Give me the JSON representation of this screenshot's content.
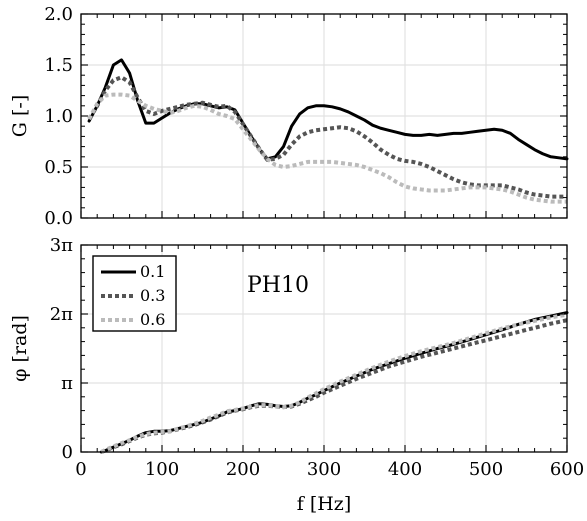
{
  "chart_data": [
    {
      "type": "line",
      "panel": "top",
      "ylabel": "G [-]",
      "ylabel_symbol": "G",
      "ylabel_unit": "[-]",
      "xlim": [
        0,
        600
      ],
      "ylim": [
        0.0,
        2.0
      ],
      "yticks": [
        0.0,
        0.5,
        1.0,
        1.5,
        2.0
      ],
      "ytick_labels": [
        "0.0",
        "0.5",
        "1.0",
        "1.5",
        "2.0"
      ],
      "grid": true,
      "series": [
        {
          "name": "0.1",
          "color": "#000000",
          "style": "solid",
          "x": [
            10,
            20,
            30,
            40,
            50,
            60,
            70,
            80,
            90,
            100,
            110,
            120,
            130,
            140,
            150,
            160,
            170,
            180,
            190,
            200,
            210,
            220,
            230,
            240,
            250,
            260,
            270,
            280,
            290,
            300,
            310,
            320,
            330,
            340,
            350,
            360,
            370,
            380,
            390,
            400,
            410,
            420,
            430,
            440,
            450,
            460,
            470,
            480,
            490,
            500,
            510,
            520,
            530,
            540,
            550,
            560,
            570,
            580,
            590,
            600
          ],
          "y": [
            0.95,
            1.1,
            1.28,
            1.5,
            1.55,
            1.42,
            1.15,
            0.93,
            0.93,
            0.98,
            1.03,
            1.07,
            1.1,
            1.12,
            1.12,
            1.1,
            1.08,
            1.09,
            1.06,
            0.93,
            0.8,
            0.68,
            0.58,
            0.6,
            0.7,
            0.9,
            1.02,
            1.08,
            1.1,
            1.1,
            1.09,
            1.07,
            1.04,
            1.0,
            0.96,
            0.91,
            0.88,
            0.86,
            0.84,
            0.82,
            0.81,
            0.81,
            0.82,
            0.81,
            0.82,
            0.83,
            0.83,
            0.84,
            0.85,
            0.86,
            0.87,
            0.86,
            0.83,
            0.77,
            0.72,
            0.67,
            0.63,
            0.6,
            0.59,
            0.58
          ]
        },
        {
          "name": "0.3",
          "color": "#555555",
          "style": "dotted",
          "x": [
            10,
            20,
            30,
            40,
            50,
            60,
            70,
            80,
            90,
            100,
            110,
            120,
            130,
            140,
            150,
            160,
            170,
            180,
            190,
            200,
            210,
            220,
            230,
            240,
            250,
            260,
            270,
            280,
            290,
            300,
            310,
            320,
            330,
            340,
            350,
            360,
            370,
            380,
            390,
            400,
            410,
            420,
            430,
            440,
            450,
            460,
            470,
            480,
            490,
            500,
            510,
            520,
            530,
            540,
            550,
            560,
            570,
            580,
            590,
            600
          ],
          "y": [
            0.97,
            1.1,
            1.25,
            1.35,
            1.38,
            1.33,
            1.18,
            1.05,
            1.02,
            1.05,
            1.07,
            1.09,
            1.11,
            1.12,
            1.13,
            1.11,
            1.09,
            1.1,
            1.04,
            0.92,
            0.8,
            0.68,
            0.57,
            0.58,
            0.62,
            0.72,
            0.8,
            0.84,
            0.86,
            0.87,
            0.88,
            0.89,
            0.88,
            0.85,
            0.8,
            0.74,
            0.67,
            0.62,
            0.58,
            0.56,
            0.55,
            0.53,
            0.5,
            0.46,
            0.42,
            0.38,
            0.35,
            0.33,
            0.32,
            0.32,
            0.32,
            0.32,
            0.3,
            0.28,
            0.25,
            0.23,
            0.22,
            0.21,
            0.21,
            0.21
          ]
        },
        {
          "name": "0.6",
          "color": "#bbbbbb",
          "style": "dotted",
          "x": [
            10,
            20,
            30,
            40,
            50,
            60,
            70,
            80,
            90,
            100,
            110,
            120,
            130,
            140,
            150,
            160,
            170,
            180,
            190,
            200,
            210,
            220,
            230,
            240,
            250,
            260,
            270,
            280,
            290,
            300,
            310,
            320,
            330,
            340,
            350,
            360,
            370,
            380,
            390,
            400,
            410,
            420,
            430,
            440,
            450,
            460,
            470,
            480,
            490,
            500,
            510,
            520,
            530,
            540,
            550,
            560,
            570,
            580,
            590,
            600
          ],
          "y": [
            0.97,
            1.12,
            1.2,
            1.21,
            1.21,
            1.2,
            1.15,
            1.1,
            1.07,
            1.05,
            1.03,
            1.05,
            1.08,
            1.1,
            1.09,
            1.06,
            1.02,
            1.0,
            0.97,
            0.87,
            0.77,
            0.67,
            0.58,
            0.52,
            0.5,
            0.51,
            0.53,
            0.55,
            0.55,
            0.55,
            0.55,
            0.54,
            0.53,
            0.52,
            0.5,
            0.47,
            0.44,
            0.4,
            0.35,
            0.31,
            0.29,
            0.28,
            0.27,
            0.27,
            0.27,
            0.28,
            0.29,
            0.3,
            0.3,
            0.3,
            0.29,
            0.28,
            0.26,
            0.23,
            0.2,
            0.18,
            0.17,
            0.16,
            0.16,
            0.16
          ]
        }
      ]
    },
    {
      "type": "line",
      "panel": "bottom",
      "xlabel": "f [Hz]",
      "xlabel_symbol": "f",
      "xlabel_unit": "[Hz]",
      "ylabel": "φ [rad]",
      "ylabel_symbol": "φ",
      "ylabel_unit": "[rad]",
      "xlim": [
        0,
        600
      ],
      "ylim": [
        0,
        3
      ],
      "y_unit": "π",
      "xticks": [
        0,
        100,
        200,
        300,
        400,
        500,
        600
      ],
      "xtick_labels": [
        "0",
        "100",
        "200",
        "300",
        "400",
        "500",
        "600"
      ],
      "yticks": [
        0,
        1,
        2,
        3
      ],
      "ytick_labels": [
        "0",
        "π",
        "2π",
        "3π"
      ],
      "grid": true,
      "annotation": "PH10",
      "legend": {
        "placement": "top-left",
        "entries": [
          "0.1",
          "0.3",
          "0.6"
        ]
      },
      "series": [
        {
          "name": "0.1",
          "color": "#000000",
          "style": "solid",
          "x": [
            25,
            30,
            40,
            50,
            60,
            70,
            80,
            90,
            100,
            110,
            120,
            130,
            140,
            150,
            160,
            170,
            180,
            190,
            200,
            210,
            220,
            230,
            240,
            250,
            260,
            270,
            280,
            290,
            300,
            320,
            340,
            360,
            380,
            400,
            420,
            440,
            460,
            480,
            500,
            520,
            540,
            560,
            580,
            600
          ],
          "y": [
            0.0,
            0.02,
            0.07,
            0.12,
            0.17,
            0.23,
            0.28,
            0.3,
            0.3,
            0.31,
            0.34,
            0.37,
            0.4,
            0.43,
            0.48,
            0.52,
            0.58,
            0.6,
            0.63,
            0.67,
            0.7,
            0.69,
            0.67,
            0.66,
            0.67,
            0.72,
            0.78,
            0.83,
            0.89,
            1.0,
            1.1,
            1.2,
            1.28,
            1.36,
            1.43,
            1.5,
            1.56,
            1.63,
            1.7,
            1.77,
            1.85,
            1.92,
            1.97,
            2.02
          ]
        },
        {
          "name": "0.3",
          "color": "#555555",
          "style": "dotted",
          "x": [
            25,
            30,
            40,
            50,
            60,
            70,
            80,
            90,
            100,
            110,
            120,
            130,
            140,
            150,
            160,
            170,
            180,
            190,
            200,
            210,
            220,
            230,
            240,
            250,
            260,
            270,
            280,
            290,
            300,
            320,
            340,
            360,
            380,
            400,
            420,
            440,
            460,
            480,
            500,
            520,
            540,
            560,
            580,
            600
          ],
          "y": [
            0.0,
            0.02,
            0.07,
            0.11,
            0.16,
            0.21,
            0.25,
            0.27,
            0.28,
            0.3,
            0.33,
            0.36,
            0.39,
            0.43,
            0.47,
            0.52,
            0.57,
            0.6,
            0.62,
            0.65,
            0.67,
            0.67,
            0.66,
            0.65,
            0.66,
            0.7,
            0.75,
            0.8,
            0.86,
            0.96,
            1.06,
            1.15,
            1.24,
            1.31,
            1.38,
            1.44,
            1.5,
            1.56,
            1.62,
            1.68,
            1.74,
            1.8,
            1.86,
            1.91
          ]
        },
        {
          "name": "0.6",
          "color": "#bbbbbb",
          "style": "dotted",
          "x": [
            25,
            30,
            40,
            50,
            60,
            70,
            80,
            90,
            100,
            110,
            120,
            130,
            140,
            150,
            160,
            170,
            180,
            190,
            200,
            210,
            220,
            230,
            240,
            250,
            260,
            270,
            280,
            290,
            300,
            320,
            340,
            360,
            380,
            400,
            420,
            440,
            460,
            480,
            500,
            520,
            540,
            560,
            580,
            600
          ],
          "y": [
            0.0,
            0.03,
            0.08,
            0.13,
            0.17,
            0.22,
            0.26,
            0.28,
            0.29,
            0.3,
            0.34,
            0.37,
            0.41,
            0.45,
            0.5,
            0.54,
            0.59,
            0.61,
            0.63,
            0.66,
            0.68,
            0.68,
            0.66,
            0.65,
            0.67,
            0.72,
            0.79,
            0.85,
            0.91,
            1.02,
            1.12,
            1.22,
            1.31,
            1.39,
            1.46,
            1.52,
            1.58,
            1.65,
            1.72,
            1.79,
            1.85,
            1.9,
            1.95,
            1.99
          ]
        }
      ]
    }
  ]
}
